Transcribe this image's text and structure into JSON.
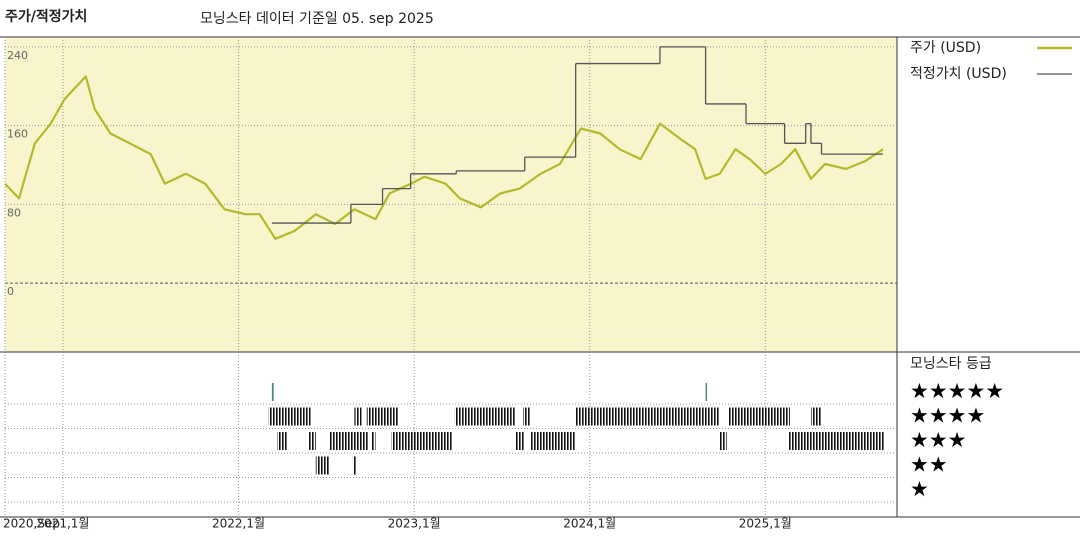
{
  "chart_data": {
    "type": "line",
    "title": "주가/적정가치",
    "subtitle": "모닝스타 데이터 기준일 05. sep 2025",
    "xlim": [
      2020.67,
      2025.75
    ],
    "xticks": [
      {
        "value": 2020.67,
        "label": "2020,Sep"
      },
      {
        "value": 2021,
        "label": "2021,1월"
      },
      {
        "value": 2022,
        "label": "2022,1월"
      },
      {
        "value": 2023,
        "label": "2023,1월"
      },
      {
        "value": 2024,
        "label": "2024,1월"
      },
      {
        "value": 2025,
        "label": "2025,1월"
      }
    ],
    "ylim": [
      -70,
      250
    ],
    "yticks": [
      0,
      80,
      160,
      240
    ],
    "grid": true,
    "series": [
      {
        "name": "주가 (USD)",
        "color": "#b3b92c",
        "step": false,
        "x": [
          2020.67,
          2020.75,
          2020.84,
          2020.93,
          2021.01,
          2021.13,
          2021.18,
          2021.27,
          2021.38,
          2021.5,
          2021.58,
          2021.7,
          2021.81,
          2021.92,
          2022.04,
          2022.12,
          2022.21,
          2022.32,
          2022.44,
          2022.55,
          2022.66,
          2022.78,
          2022.86,
          2022.98,
          2023.06,
          2023.18,
          2023.26,
          2023.38,
          2023.49,
          2023.6,
          2023.72,
          2023.83,
          2023.95,
          2024.06,
          2024.17,
          2024.29,
          2024.4,
          2024.52,
          2024.6,
          2024.66,
          2024.74,
          2024.83,
          2024.91,
          2025.0,
          2025.09,
          2025.17,
          2025.26,
          2025.34,
          2025.46,
          2025.57,
          2025.67
        ],
        "values": [
          101,
          86,
          142,
          162,
          187,
          210,
          177,
          152,
          142,
          131,
          101,
          111,
          101,
          75,
          70,
          70,
          45,
          53,
          70,
          60,
          75,
          65,
          91,
          101,
          108,
          101,
          86,
          77,
          91,
          96,
          111,
          121,
          157,
          152,
          136,
          126,
          162,
          146,
          136,
          106,
          111,
          136,
          126,
          111,
          121,
          136,
          106,
          121,
          116,
          124,
          136
        ]
      },
      {
        "name": "적정가치 (USD)",
        "color": "#555555",
        "step": true,
        "x": [
          2022.19,
          2022.64,
          2022.82,
          2022.98,
          2023.24,
          2023.63,
          2023.92,
          2024.4,
          2024.66,
          2024.89,
          2025.11,
          2025.23,
          2025.26,
          2025.32,
          2025.67
        ],
        "values": [
          61,
          80,
          96,
          111,
          114,
          128,
          223,
          240,
          182,
          162,
          142,
          162,
          142,
          131,
          131
        ]
      }
    ],
    "rating_title": "모닝스타 등급",
    "rating_levels": [
      "★★★★★",
      "★★★★",
      "★★★",
      "★★",
      "★"
    ],
    "rating_periods": [
      {
        "start": 2022.19,
        "end": 2022.2,
        "stars": 5
      },
      {
        "start": 2024.66,
        "end": 2024.665,
        "stars": 5
      },
      {
        "start": 2022.17,
        "end": 2022.41,
        "stars": 4
      },
      {
        "start": 2022.66,
        "end": 2022.7,
        "stars": 4
      },
      {
        "start": 2022.73,
        "end": 2022.91,
        "stars": 4
      },
      {
        "start": 2023.23,
        "end": 2023.58,
        "stars": 4
      },
      {
        "start": 2023.62,
        "end": 2023.66,
        "stars": 4
      },
      {
        "start": 2023.92,
        "end": 2024.74,
        "stars": 4
      },
      {
        "start": 2024.79,
        "end": 2025.14,
        "stars": 4
      },
      {
        "start": 2025.26,
        "end": 2025.32,
        "stars": 4
      },
      {
        "start": 2022.22,
        "end": 2022.28,
        "stars": 3
      },
      {
        "start": 2022.4,
        "end": 2022.44,
        "stars": 3
      },
      {
        "start": 2022.52,
        "end": 2022.74,
        "stars": 3
      },
      {
        "start": 2022.76,
        "end": 2022.78,
        "stars": 3
      },
      {
        "start": 2022.87,
        "end": 2023.22,
        "stars": 3
      },
      {
        "start": 2023.58,
        "end": 2023.63,
        "stars": 3
      },
      {
        "start": 2023.66,
        "end": 2023.92,
        "stars": 3
      },
      {
        "start": 2024.74,
        "end": 2024.78,
        "stars": 3
      },
      {
        "start": 2025.13,
        "end": 2025.68,
        "stars": 3
      },
      {
        "start": 2022.44,
        "end": 2022.52,
        "stars": 2
      },
      {
        "start": 2022.65,
        "end": 2022.67,
        "stars": 2
      }
    ]
  }
}
